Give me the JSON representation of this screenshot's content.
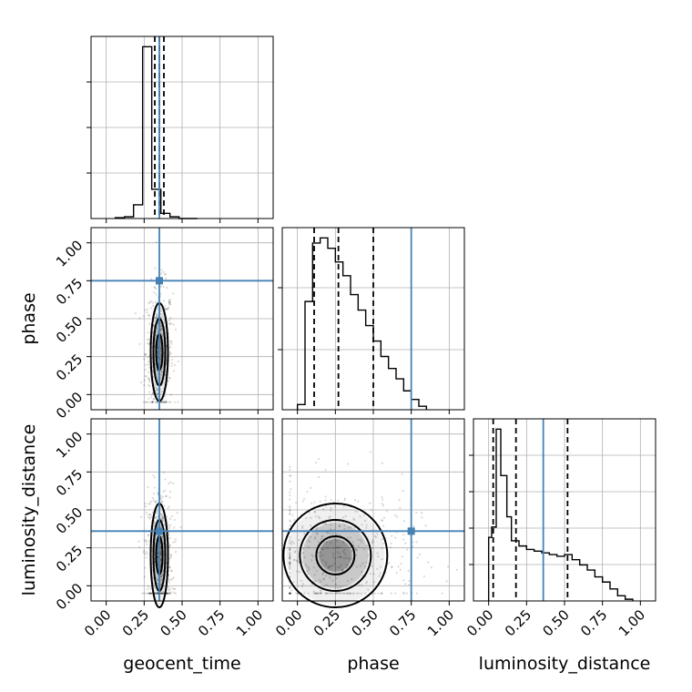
{
  "chart_data": {
    "type": "corner",
    "parameters": [
      "geocent_time",
      "phase",
      "luminosity_distance"
    ],
    "axis_labels": {
      "geocent_time": "geocent_time",
      "phase": "phase",
      "luminosity_distance": "luminosity_distance"
    },
    "range": [
      -0.1,
      1.1
    ],
    "ticks": [
      0.0,
      0.25,
      0.5,
      0.75,
      1.0
    ],
    "tick_labels": [
      "0.00",
      "0.25",
      "0.50",
      "0.75",
      "1.00"
    ],
    "truths": {
      "geocent_time": 0.35,
      "phase": 0.75,
      "luminosity_distance": 0.36
    },
    "truth_color": "#4682b4",
    "grid": true,
    "histograms": {
      "geocent_time": {
        "bins": [
          0.06,
          0.12,
          0.18,
          0.24,
          0.3,
          0.36,
          0.42,
          0.48,
          0.54,
          0.6
        ],
        "counts": [
          0.005,
          0.01,
          0.08,
          1.0,
          0.17,
          0.03,
          0.01,
          0.0,
          0.0
        ],
        "quantiles": [
          0.32,
          0.35,
          0.38
        ],
        "y_ticks": [
          0.25,
          0.5,
          0.75
        ]
      },
      "phase": {
        "bins": [
          0.0,
          0.05,
          0.1,
          0.15,
          0.2,
          0.25,
          0.3,
          0.35,
          0.4,
          0.45,
          0.5,
          0.55,
          0.6,
          0.65,
          0.7,
          0.75,
          0.8,
          0.85
        ],
        "counts": [
          0.03,
          0.63,
          0.97,
          1.0,
          0.94,
          0.86,
          0.78,
          0.67,
          0.58,
          0.49,
          0.4,
          0.31,
          0.24,
          0.18,
          0.11,
          0.06,
          0.02
        ],
        "quantiles": [
          0.11,
          0.27,
          0.5
        ],
        "y_ticks": [
          0.33,
          0.67
        ]
      },
      "luminosity_distance": {
        "bins": [
          0.0,
          0.02,
          0.05,
          0.08,
          0.12,
          0.15,
          0.2,
          0.25,
          0.3,
          0.35,
          0.4,
          0.45,
          0.5,
          0.55,
          0.6,
          0.65,
          0.7,
          0.75,
          0.8,
          0.85,
          0.9,
          0.95
        ],
        "counts": [
          0.37,
          0.43,
          1.0,
          0.73,
          0.49,
          0.35,
          0.32,
          0.3,
          0.29,
          0.28,
          0.27,
          0.26,
          0.27,
          0.24,
          0.21,
          0.18,
          0.14,
          0.11,
          0.07,
          0.03,
          0.01
        ],
        "quantiles": [
          0.03,
          0.18,
          0.52
        ],
        "y_ticks": [
          0.2,
          0.4,
          0.6,
          0.8
        ]
      }
    },
    "joint": {
      "phase|geocent_time": {
        "center": [
          0.35,
          0.28
        ],
        "spread": [
          0.03,
          0.17
        ]
      },
      "luminosity_distance|geocent_time": {
        "center": [
          0.35,
          0.2
        ],
        "spread": [
          0.03,
          0.18
        ]
      },
      "luminosity_distance|phase": {
        "center": [
          0.25,
          0.2
        ],
        "spread": [
          0.18,
          0.18
        ]
      }
    }
  }
}
